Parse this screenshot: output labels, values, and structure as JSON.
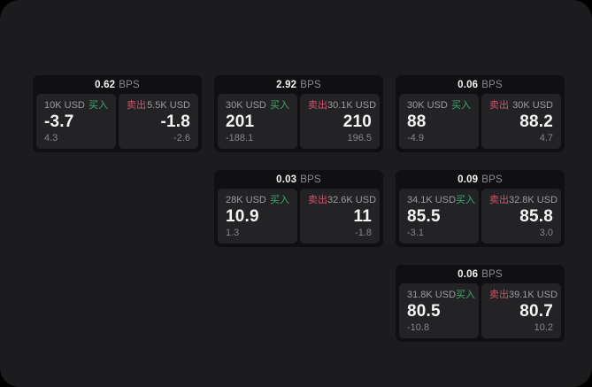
{
  "labels": {
    "bps": "BPS",
    "buy": "买入",
    "sell": "卖出"
  },
  "colors": {
    "background": "#000000",
    "panel_bg": "#1c1c1e",
    "card_bg": "#101012",
    "tile_bg": "#232326",
    "buy_green": "#3fa970",
    "sell_red": "#cf5368",
    "value_white": "#f4f4f5",
    "muted_gray": "#8b8b8d"
  },
  "cards": [
    {
      "spread": "0.62",
      "buy": {
        "amount": "10K USD",
        "price": "-3.7",
        "delta": "4.3"
      },
      "sell": {
        "amount": "5.5K USD",
        "price": "-1.8",
        "delta": "-2.6"
      }
    },
    {
      "spread": "2.92",
      "buy": {
        "amount": "30K USD",
        "price": "201",
        "delta": "-188.1"
      },
      "sell": {
        "amount": "30.1K USD",
        "price": "210",
        "delta": "196.5"
      }
    },
    {
      "spread": "0.06",
      "buy": {
        "amount": "30K USD",
        "price": "88",
        "delta": "-4.9"
      },
      "sell": {
        "amount": "30K USD",
        "price": "88.2",
        "delta": "4.7"
      }
    },
    {
      "spread": "0.03",
      "buy": {
        "amount": "28K USD",
        "price": "10.9",
        "delta": "1.3"
      },
      "sell": {
        "amount": "32.6K USD",
        "price": "11",
        "delta": "-1.8"
      }
    },
    {
      "spread": "0.09",
      "buy": {
        "amount": "34.1K USD",
        "price": "85.5",
        "delta": "-3.1"
      },
      "sell": {
        "amount": "32.8K USD",
        "price": "85.8",
        "delta": "3.0"
      }
    },
    {
      "spread": "0.06",
      "buy": {
        "amount": "31.8K USD",
        "price": "80.5",
        "delta": "-10.8"
      },
      "sell": {
        "amount": "39.1K USD",
        "price": "80.7",
        "delta": "10.2"
      }
    }
  ]
}
